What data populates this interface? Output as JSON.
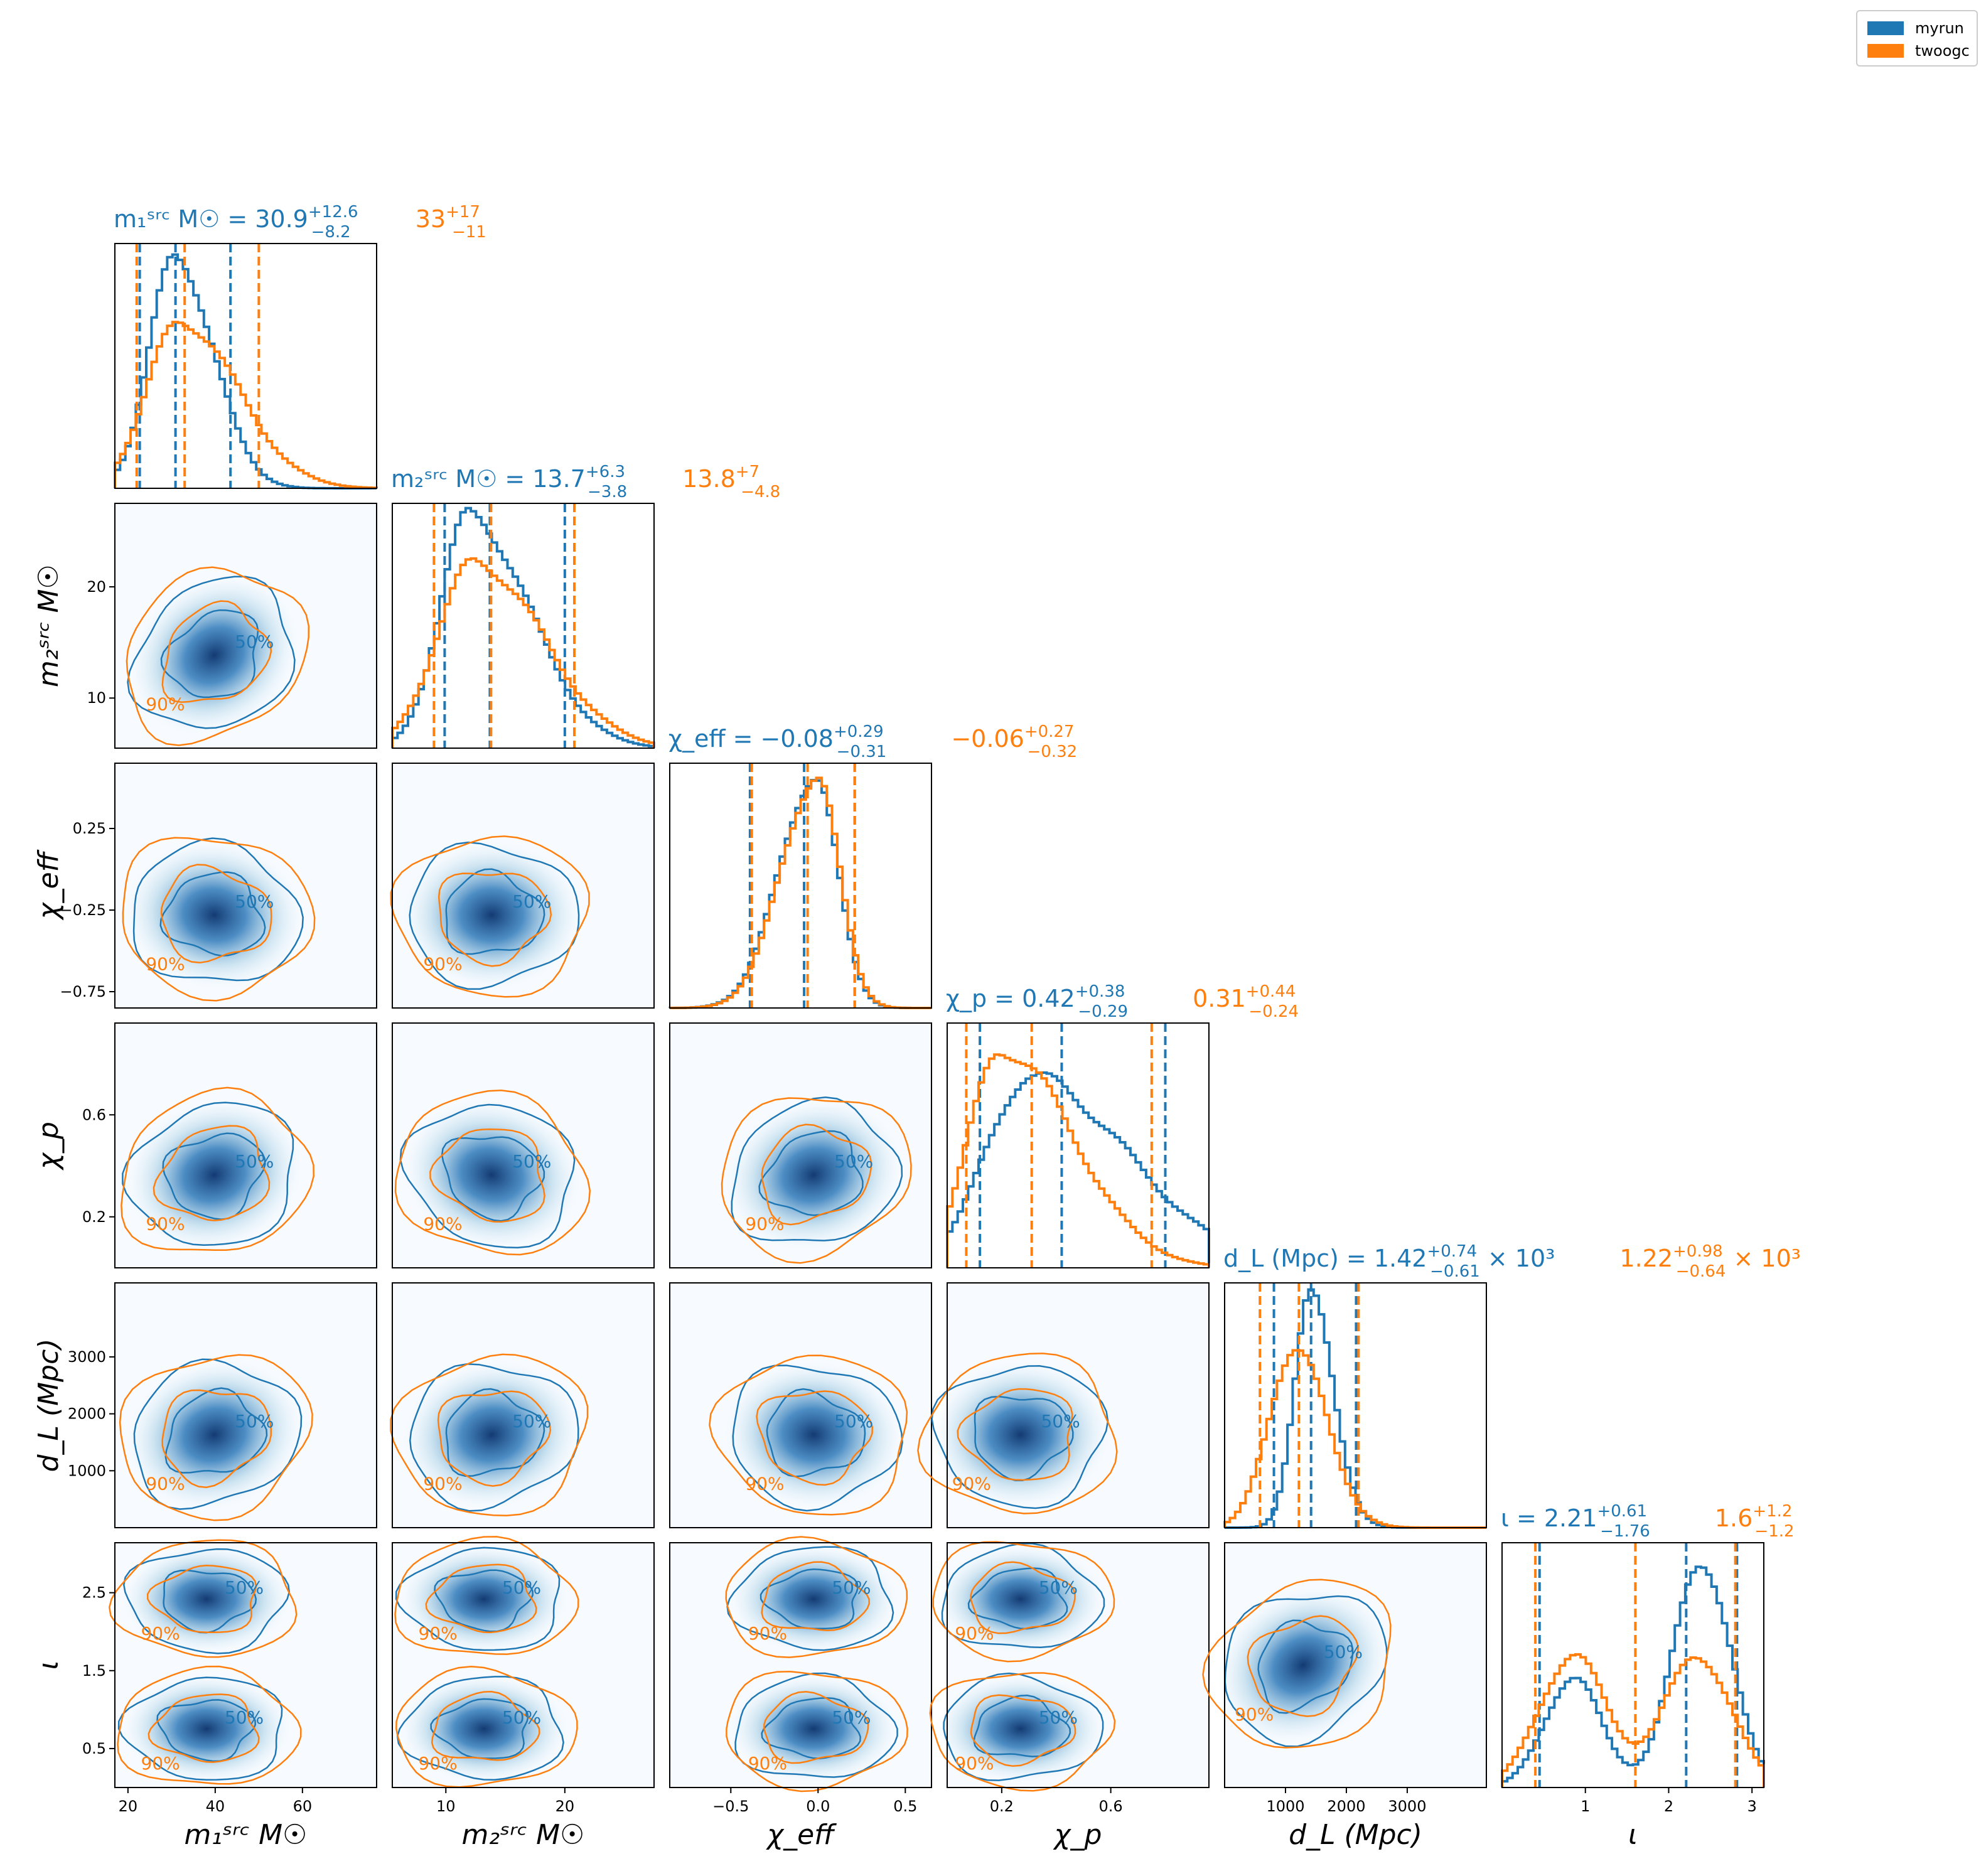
{
  "colors": {
    "myrun": "#1f77b4",
    "twoogc": "#ff7f0e"
  },
  "legend": {
    "placement": "top-right",
    "items": [
      {
        "label": "myrun",
        "color": "#1f77b4"
      },
      {
        "label": "twoogc",
        "color": "#ff7f0e"
      }
    ]
  },
  "chart_data": {
    "type": "corner",
    "series": [
      {
        "name": "myrun",
        "color": "#1f77b4"
      },
      {
        "name": "twoogc",
        "color": "#ff7f0e"
      }
    ],
    "parameters": [
      {
        "key": "m1",
        "xlabel": "m₁ˢʳᶜ M☉",
        "ylabel": "",
        "range": [
          17,
          77
        ],
        "ticks": [
          20,
          40,
          60
        ],
        "title": {
          "myrun": {
            "name": "m₁ˢʳᶜ M☉",
            "median": "30.9",
            "plus": "+12.6",
            "minus": "−8.2"
          },
          "twoogc": {
            "median": "33",
            "plus": "+17",
            "minus": "−11"
          }
        },
        "quantiles": {
          "myrun": [
            22.7,
            30.9,
            43.5
          ],
          "twoogc": [
            22,
            33,
            50
          ]
        },
        "hist": {
          "myrun": {
            "mode": 31,
            "sl": 6,
            "sr": 8.5,
            "amp": 1.0
          },
          "twoogc": {
            "mode": 32,
            "sl": 7.5,
            "sr": 13,
            "amp": 0.72
          }
        }
      },
      {
        "key": "m2",
        "xlabel": "m₂ˢʳᶜ M☉",
        "ylabel": "m₂ˢʳᶜ M☉",
        "range": [
          5.5,
          27.5
        ],
        "ticks": [
          10,
          20
        ],
        "title": {
          "myrun": {
            "name": "m₂ˢʳᶜ M☉",
            "median": "13.7",
            "plus": "+6.3",
            "minus": "−3.8"
          },
          "twoogc": {
            "median": "13.8",
            "plus": "+7",
            "minus": "−4.8"
          }
        },
        "quantiles": {
          "myrun": [
            9.9,
            13.7,
            20.0
          ],
          "twoogc": [
            9.0,
            13.8,
            20.8
          ]
        },
        "hist": {
          "myrun": {
            "mode": 12,
            "sl": 2.5,
            "sr": 5,
            "amp": 1.0
          },
          "twoogc": {
            "mode": 12.5,
            "sl": 3.2,
            "sr": 5.6,
            "amp": 0.8
          }
        }
      },
      {
        "key": "chi_eff",
        "xlabel": "χ_eff",
        "ylabel": "χ_eff",
        "range": [
          -0.85,
          0.65
        ],
        "ticks": [
          -0.5,
          0.0,
          0.5
        ],
        "yticks": [
          -0.75,
          -0.25,
          0.25
        ],
        "title": {
          "myrun": {
            "name": "χ_eff",
            "median": "−0.08",
            "plus": "+0.29",
            "minus": "−0.31"
          },
          "twoogc": {
            "median": "−0.06",
            "plus": "+0.27",
            "minus": "−0.32"
          }
        },
        "quantiles": {
          "myrun": [
            -0.39,
            -0.08,
            0.21
          ],
          "twoogc": [
            -0.38,
            -0.06,
            0.21
          ]
        },
        "hist": {
          "myrun": {
            "mode": -0.02,
            "sl": 0.2,
            "sr": 0.13,
            "amp": 1.0
          },
          "twoogc": {
            "mode": -0.01,
            "sl": 0.2,
            "sr": 0.13,
            "amp": 1.0
          }
        }
      },
      {
        "key": "chi_p",
        "xlabel": "χ_p",
        "ylabel": "χ_p",
        "range": [
          0.0,
          0.96
        ],
        "ticks": [
          0.2,
          0.6
        ],
        "title": {
          "myrun": {
            "name": "χ_p",
            "median": "0.42",
            "plus": "+0.38",
            "minus": "−0.29"
          },
          "twoogc": {
            "median": "0.31",
            "plus": "+0.44",
            "minus": "−0.24"
          }
        },
        "quantiles": {
          "myrun": [
            0.12,
            0.42,
            0.8
          ],
          "twoogc": [
            0.07,
            0.31,
            0.75
          ]
        },
        "hist": {
          "myrun": {
            "mode": 0.3,
            "sl": 0.16,
            "sr": 0.36,
            "amp": 0.82
          },
          "twoogc": {
            "mode": 0.2,
            "sl": 0.12,
            "sr": 0.26,
            "amp": 0.94
          }
        }
      },
      {
        "key": "dL",
        "xlabel": "d_L (Mpc)",
        "ylabel": "d_L (Mpc)",
        "range": [
          0,
          4300
        ],
        "ticks": [
          1000,
          2000,
          3000
        ],
        "title": {
          "myrun": {
            "name": "d_L (Mpc)",
            "median": "1.42",
            "plus": "+0.74",
            "minus": "−0.61",
            "suffix": "× 10³"
          },
          "twoogc": {
            "median": "1.22",
            "plus": "+0.98",
            "minus": "−0.64",
            "suffix": "× 10³"
          }
        },
        "quantiles": {
          "myrun": [
            810,
            1420,
            2160
          ],
          "twoogc": [
            580,
            1220,
            2200
          ]
        },
        "hist": {
          "myrun": {
            "mode": 1400,
            "sl": 260,
            "sr": 380,
            "amp": 1.0
          },
          "twoogc": {
            "mode": 1150,
            "sl": 420,
            "sr": 520,
            "amp": 0.78
          }
        }
      },
      {
        "key": "iota",
        "xlabel": "ι",
        "ylabel": "ι",
        "range": [
          0.0,
          3.14159
        ],
        "ticks": [
          1,
          2,
          3
        ],
        "yticks": [
          0.5,
          1.5,
          2.5
        ],
        "title": {
          "myrun": {
            "name": "ι",
            "median": "2.21",
            "plus": "+0.61",
            "minus": "−1.76"
          },
          "twoogc": {
            "median": "1.6",
            "plus": "+1.2",
            "minus": "−1.2"
          }
        },
        "quantiles": {
          "myrun": [
            0.45,
            2.21,
            2.82
          ],
          "twoogc": [
            0.4,
            1.6,
            2.8
          ]
        },
        "hist": {
          "myrun": {
            "bimodal": true,
            "p1": 0.85,
            "p2": 2.4,
            "s": 0.34,
            "a1": 0.48,
            "a2": 1.0
          },
          "twoogc": {
            "bimodal": true,
            "p1": 0.85,
            "p2": 2.35,
            "s": 0.4,
            "a1": 0.58,
            "a2": 0.58
          }
        }
      }
    ]
  }
}
